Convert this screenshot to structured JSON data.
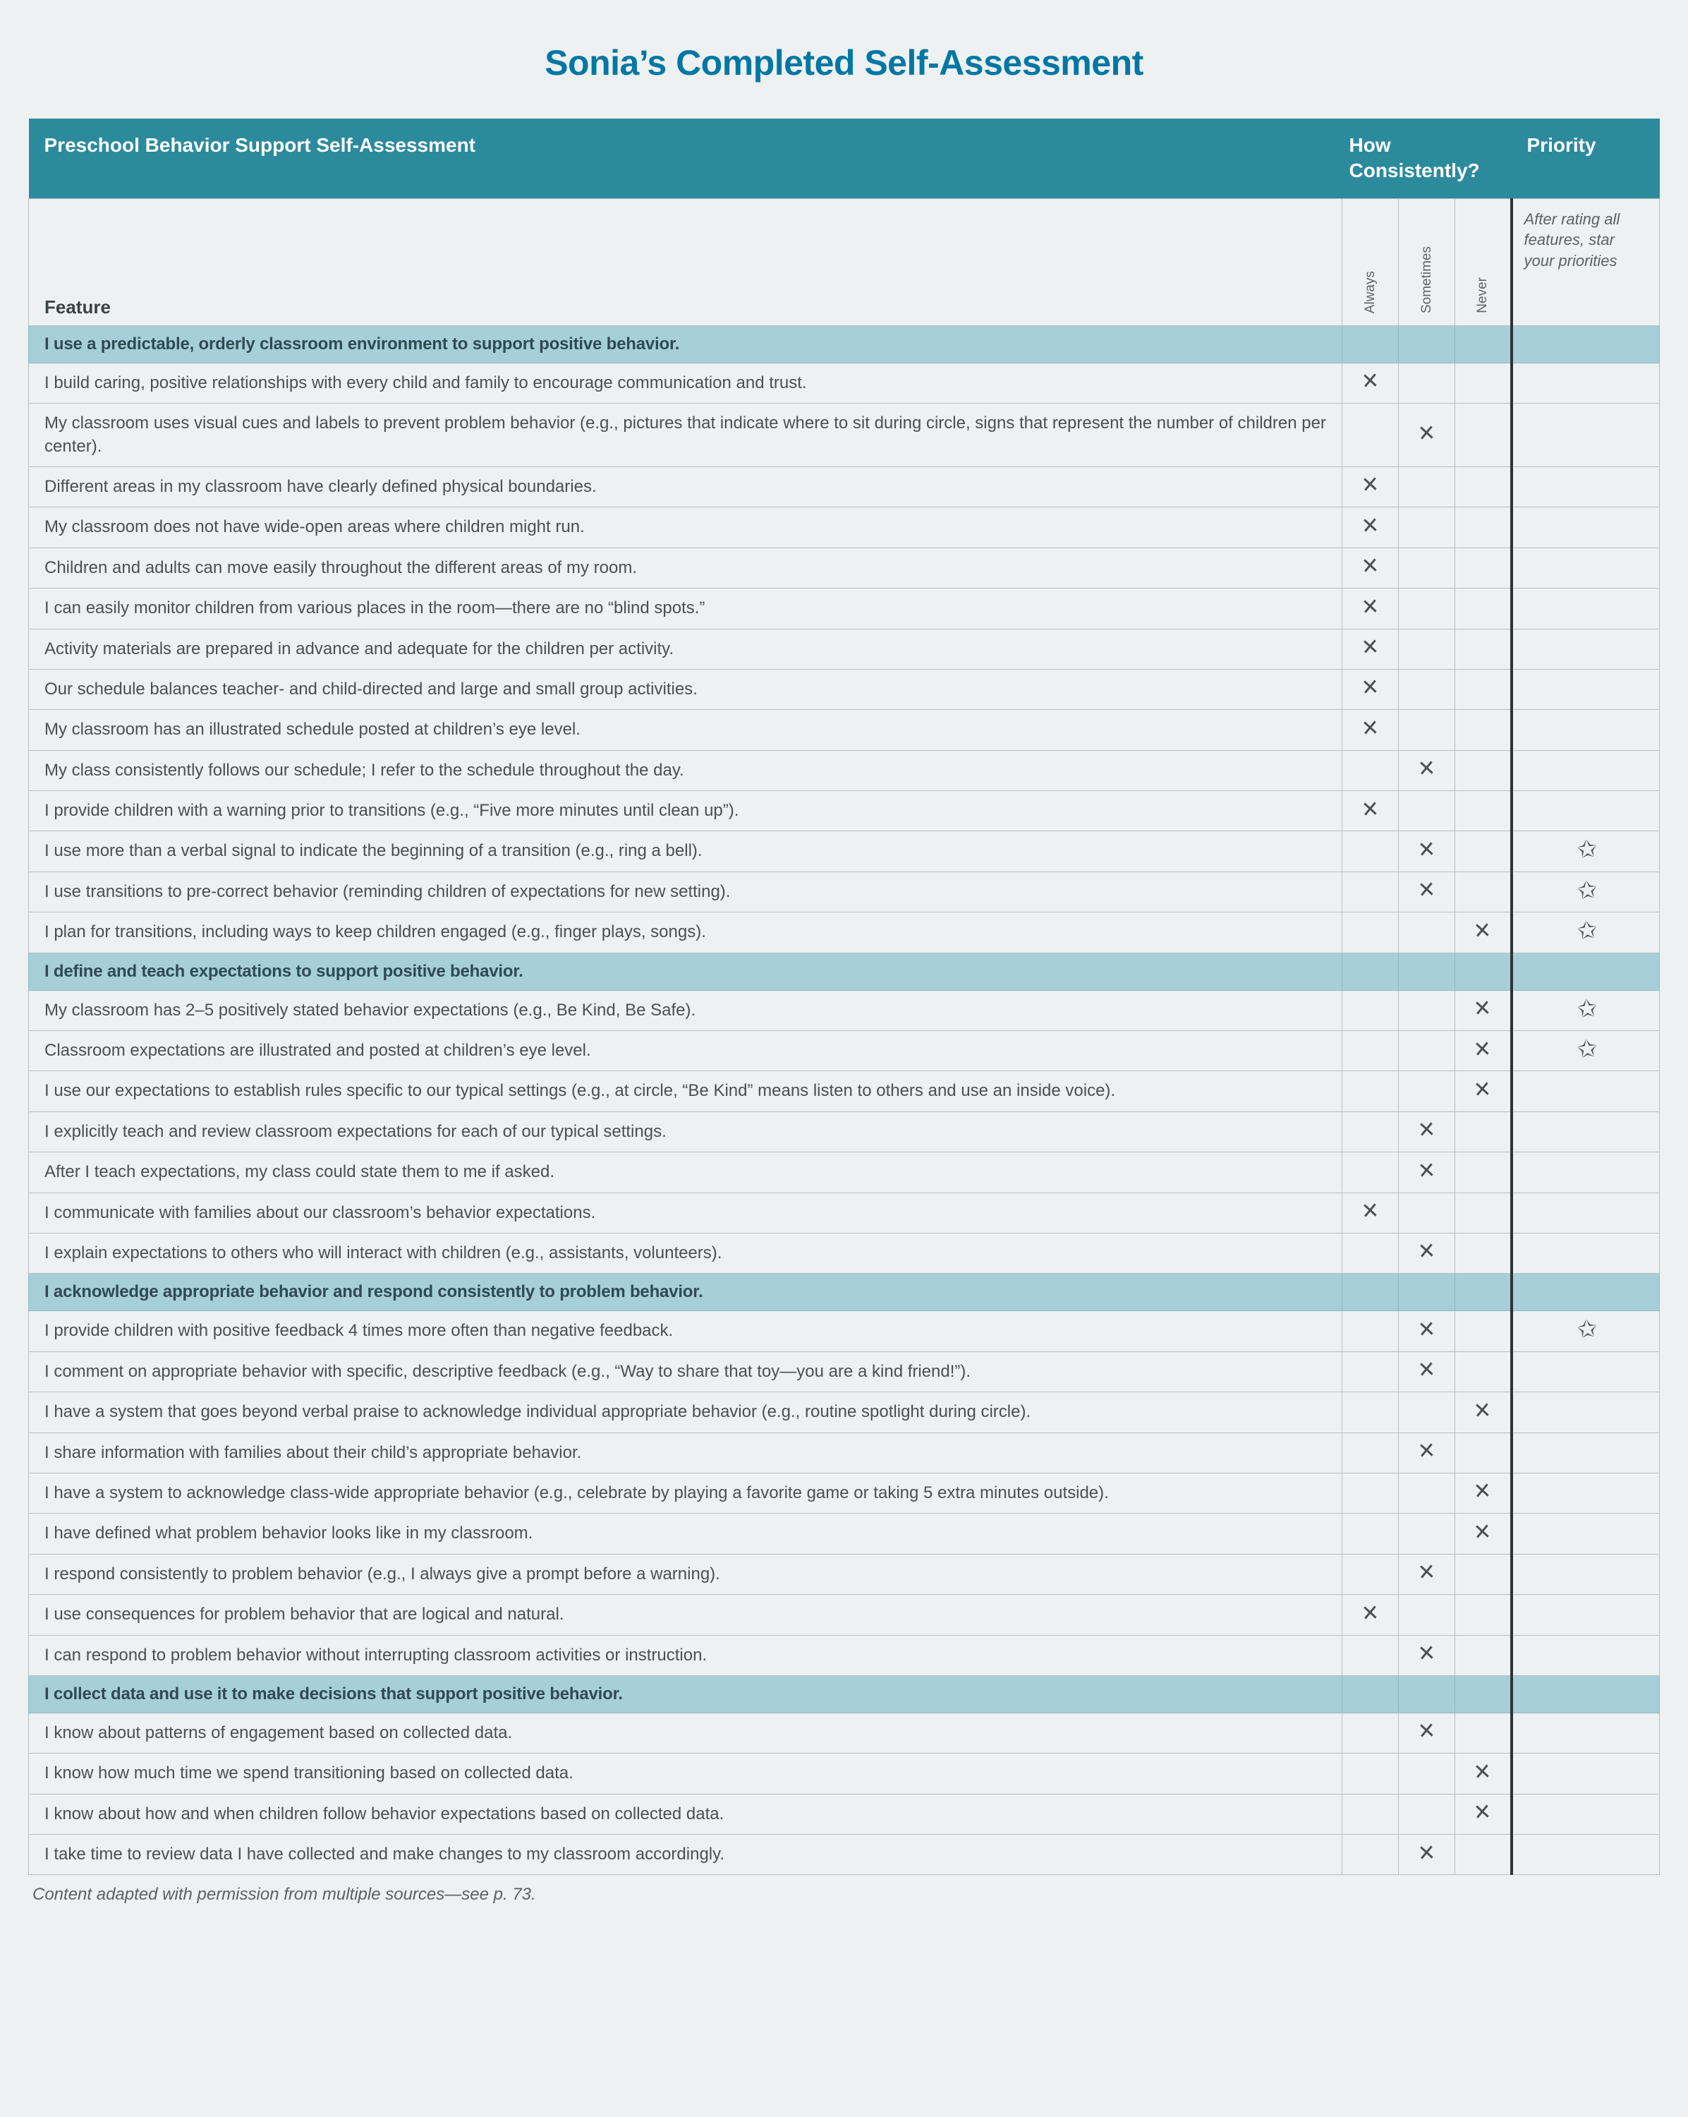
{
  "title": "Sonia’s Completed Self-Assessment",
  "tableTitle": "Preschool Behavior Support Self-Assessment",
  "howHeader": "How Consistently?",
  "priorityHeader": "Priority",
  "featureLabel": "Feature",
  "ratingLabels": {
    "always": "Always",
    "sometimes": "Sometimes",
    "never": "Never"
  },
  "priorityHint": "After rating all features, star your priorities",
  "credit": "Content adapted with permission from multiple sources—see p. 73.",
  "marks": {
    "x": "✕",
    "star": "✩"
  },
  "colors": {
    "pageBg": "#eef1f1",
    "titleColor": "#0077a4",
    "headerBg": "#2c8a9d",
    "sectionBg": "#a7cfd9",
    "border": "#b7bfc2",
    "priorityDivider": "#2e3336",
    "bodyText": "#4a4f52"
  },
  "sections": [
    {
      "heading": "I use a predictable, orderly classroom environment to support positive behavior.",
      "items": [
        {
          "text": "I build caring, positive relationships with every child and family to encourage communication and trust.",
          "rating": "always"
        },
        {
          "text": "My classroom uses visual cues and labels to prevent problem behavior (e.g., pictures that indicate where to sit during circle, signs that represent the number of children per center).",
          "rating": "sometimes"
        },
        {
          "text": "Different areas in my classroom have clearly defined physical boundaries.",
          "rating": "always"
        },
        {
          "text": "My classroom does not have wide-open areas where children might run.",
          "rating": "always"
        },
        {
          "text": "Children and adults can move easily throughout the different areas of my room.",
          "rating": "always"
        },
        {
          "text": "I can easily monitor children from various places in the room—there are no “blind spots.”",
          "rating": "always"
        },
        {
          "text": "Activity materials are prepared in advance and adequate for the children per activity.",
          "rating": "always"
        },
        {
          "text": "Our schedule balances teacher- and child-directed and large and small group activities.",
          "rating": "always"
        },
        {
          "text": "My classroom has an illustrated schedule posted at children’s eye level.",
          "rating": "always"
        },
        {
          "text": "My class consistently follows our schedule; I refer to the schedule throughout the day.",
          "rating": "sometimes"
        },
        {
          "text": "I provide children with a warning prior to transitions (e.g., “Five more minutes until clean up”).",
          "rating": "always"
        },
        {
          "text": "I use more than a verbal signal to indicate the beginning of a transition (e.g., ring a bell).",
          "rating": "sometimes",
          "priority": true
        },
        {
          "text": "I use transitions to pre-correct behavior (reminding children of expectations for new setting).",
          "rating": "sometimes",
          "priority": true
        },
        {
          "text": "I plan for transitions, including ways to keep children engaged (e.g., finger plays, songs).",
          "rating": "never",
          "priority": true
        }
      ]
    },
    {
      "heading": "I define and teach expectations to support positive behavior.",
      "items": [
        {
          "text": "My classroom has 2–5 positively stated behavior expectations (e.g., Be Kind, Be Safe).",
          "rating": "never",
          "priority": true
        },
        {
          "text": "Classroom expectations are illustrated and posted at children’s eye level.",
          "rating": "never",
          "priority": true
        },
        {
          "text": "I use our expectations to establish rules specific to our typical settings (e.g., at circle, “Be Kind” means listen to others and use an inside voice).",
          "rating": "never"
        },
        {
          "text": "I explicitly teach and review classroom expectations for each of our typical settings.",
          "rating": "sometimes"
        },
        {
          "text": "After I teach expectations, my class could state them to me if asked.",
          "rating": "sometimes"
        },
        {
          "text": "I communicate with families about our classroom’s behavior expectations.",
          "rating": "always"
        },
        {
          "text": "I explain expectations to others who will interact with children (e.g., assistants, volunteers).",
          "rating": "sometimes"
        }
      ]
    },
    {
      "heading": "I acknowledge appropriate behavior and respond consistently to problem behavior.",
      "items": [
        {
          "text": "I provide children with positive feedback 4 times more often than negative feedback.",
          "rating": "sometimes",
          "priority": true
        },
        {
          "text": "I comment on appropriate behavior with specific, descriptive feedback (e.g., “Way to share that toy—you are a kind friend!”).",
          "rating": "sometimes"
        },
        {
          "text": "I have a system that goes beyond verbal praise to acknowledge individual appropriate behavior (e.g., routine spotlight during circle).",
          "rating": "never"
        },
        {
          "text": "I share information with families about their child’s appropriate behavior.",
          "rating": "sometimes"
        },
        {
          "text": "I have a system to acknowledge class-wide appropriate behavior (e.g., celebrate by playing a favorite game or taking 5 extra minutes outside).",
          "rating": "never"
        },
        {
          "text": "I have defined what problem behavior looks like in my classroom.",
          "rating": "never"
        },
        {
          "text": "I respond consistently to problem behavior (e.g., I always give a prompt before a warning).",
          "rating": "sometimes"
        },
        {
          "text": "I use consequences for problem behavior that are logical and natural.",
          "rating": "always"
        },
        {
          "text": "I can respond to problem behavior without interrupting classroom activities or instruction.",
          "rating": "sometimes"
        }
      ]
    },
    {
      "heading": "I collect data and use it to make decisions that support positive behavior.",
      "items": [
        {
          "text": "I know about patterns of engagement based on collected data.",
          "rating": "sometimes"
        },
        {
          "text": "I know how much time we spend transitioning based on collected data.",
          "rating": "never"
        },
        {
          "text": "I know about how and when children follow behavior expectations based on collected data.",
          "rating": "never"
        },
        {
          "text": "I take time to review data I have collected and make changes to my classroom accordingly.",
          "rating": "sometimes"
        }
      ]
    }
  ]
}
